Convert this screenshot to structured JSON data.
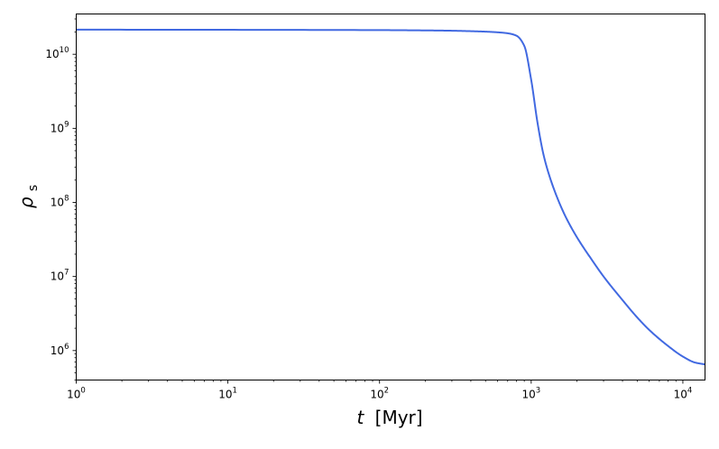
{
  "chart_data": {
    "type": "line",
    "title": "",
    "xlabel": {
      "symbol": "t",
      "unit": "[Myr]"
    },
    "ylabel": {
      "symbol": "ρ",
      "subscript": "s"
    },
    "xscale": "log",
    "yscale": "log",
    "xlim": [
      1,
      14000
    ],
    "ylim": [
      400000,
      35000000000
    ],
    "grid": false,
    "legend": "none",
    "x_ticks": [
      {
        "base": "10",
        "exp": "0",
        "value": 1
      },
      {
        "base": "10",
        "exp": "1",
        "value": 10
      },
      {
        "base": "10",
        "exp": "2",
        "value": 100
      },
      {
        "base": "10",
        "exp": "3",
        "value": 1000
      },
      {
        "base": "10",
        "exp": "4",
        "value": 10000
      }
    ],
    "y_ticks": [
      {
        "base": "10",
        "exp": "6",
        "value": 1000000
      },
      {
        "base": "10",
        "exp": "7",
        "value": 10000000
      },
      {
        "base": "10",
        "exp": "8",
        "value": 100000000
      },
      {
        "base": "10",
        "exp": "9",
        "value": 1000000000
      },
      {
        "base": "10",
        "exp": "10",
        "value": 10000000000
      }
    ],
    "series": [
      {
        "color": "#4169e1",
        "x": [
          1,
          10,
          100,
          200,
          300,
          400,
          500,
          600,
          700,
          800,
          900,
          1000,
          1100,
          1200,
          1300,
          1500,
          1700,
          2000,
          2500,
          3000,
          4000,
          5000,
          6000,
          8000,
          10000,
          12000,
          14000
        ],
        "y": [
          21500000000,
          21400000000,
          21200000000,
          21000000000,
          20800000000,
          20500000000,
          20200000000,
          19800000000,
          19200000000,
          17800000000,
          13000000000,
          4500000000,
          1200000000,
          460000000,
          250000000,
          110000000,
          62000000,
          34000000,
          17000000,
          10000000,
          4800000,
          2800000,
          1900000,
          1150000,
          830000,
          690000,
          650000
        ]
      }
    ]
  }
}
